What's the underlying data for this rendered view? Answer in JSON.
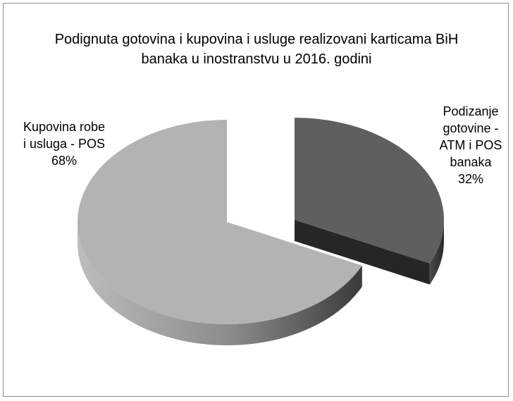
{
  "chart_data": {
    "type": "pie",
    "title": "Podignuta gotovina i kupovina i usluge realizovani karticama  BiH banaka u inostranstvu u 2016. godini",
    "categories": [
      "Podizanje gotovine - ATM i POS banaka",
      "Kupovina robe i usluga - POS"
    ],
    "values": [
      32,
      68
    ],
    "value_labels": [
      "32%",
      "68%"
    ],
    "colors": [
      "#5f5f5f",
      "#b3b3b3"
    ]
  }
}
